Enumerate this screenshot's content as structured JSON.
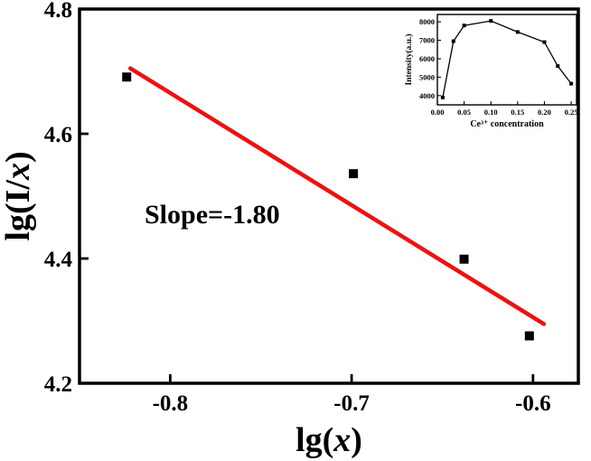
{
  "figure": {
    "background": "#ffffff",
    "axis_color": "#000000"
  },
  "chart_data": [
    {
      "id": "main",
      "type": "scatter",
      "title": "",
      "xlabel": "lg(x)",
      "ylabel": "lg(I/x)",
      "xlim": [
        -0.85,
        -0.575
      ],
      "ylim": [
        4.2,
        4.8
      ],
      "xticks": [
        -0.8,
        -0.7,
        -0.6
      ],
      "xtick_labels": [
        "-0.8",
        "-0.7",
        "-0.6"
      ],
      "yticks": [
        4.2,
        4.4,
        4.6,
        4.8
      ],
      "ytick_labels": [
        "4.2",
        "4.4",
        "4.6",
        "4.8"
      ],
      "grid": false,
      "legend": "none",
      "marker": "square",
      "marker_color": "#000000",
      "points": [
        {
          "x": -0.824,
          "y": 4.691
        },
        {
          "x": -0.699,
          "y": 4.536
        },
        {
          "x": -0.638,
          "y": 4.399
        },
        {
          "x": -0.602,
          "y": 4.276
        }
      ],
      "fit_line": {
        "slope": -1.8,
        "color": "#ee1111",
        "x1": -0.822,
        "y1": 4.705,
        "x2": -0.594,
        "y2": 4.295
      },
      "annotation": "Slope=-1.80"
    },
    {
      "id": "inset",
      "type": "line",
      "title": "",
      "xlabel": "Ce³⁺ concentration",
      "ylabel": "Intensity(a.u.)",
      "xlim": [
        0.0,
        0.26
      ],
      "ylim": [
        3500,
        8400
      ],
      "xticks": [
        0.0,
        0.05,
        0.1,
        0.15,
        0.2,
        0.25
      ],
      "xtick_labels": [
        "0.00",
        "0.05",
        "0.10",
        "0.15",
        "0.20",
        "0.25"
      ],
      "yticks": [
        4000,
        5000,
        6000,
        7000,
        8000
      ],
      "ytick_labels": [
        "4000",
        "5000",
        "6000",
        "7000",
        "8000"
      ],
      "grid": false,
      "legend": "none",
      "marker": "square",
      "line_color": "#000000",
      "position": "top-right",
      "x": [
        0.01,
        0.03,
        0.05,
        0.1,
        0.15,
        0.2,
        0.225,
        0.25
      ],
      "y": [
        3900,
        6950,
        7800,
        8050,
        7450,
        6900,
        5600,
        4650
      ]
    }
  ]
}
